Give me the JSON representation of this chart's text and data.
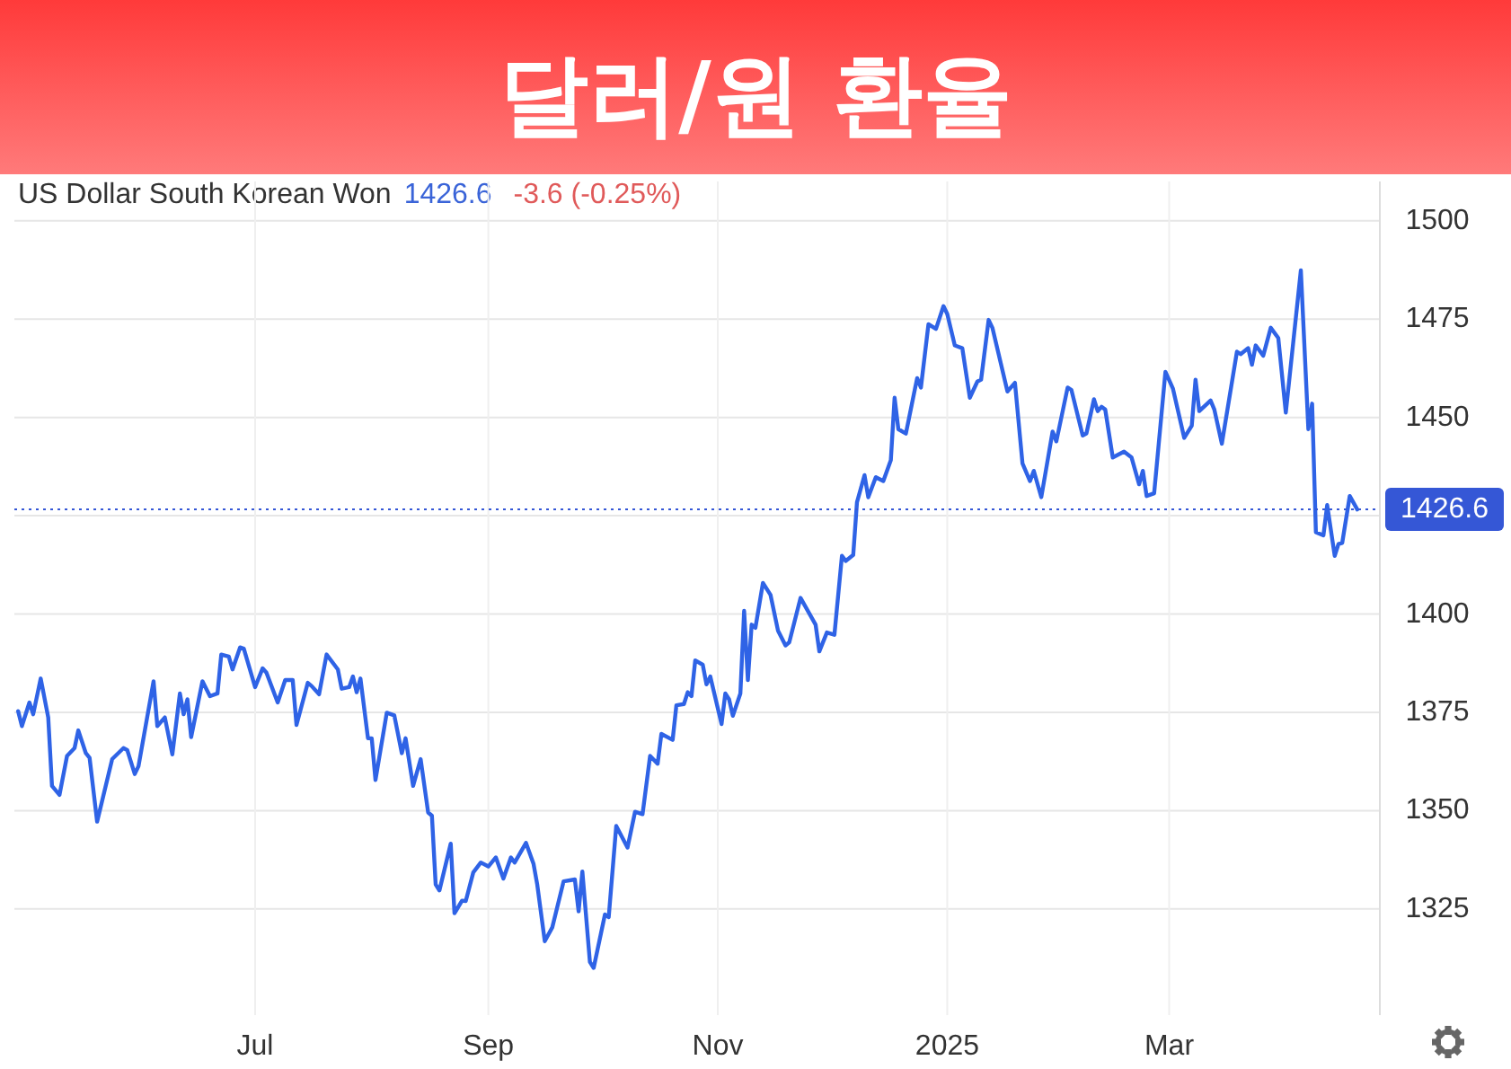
{
  "chart_data": {
    "type": "line",
    "title": "달러/원 환율",
    "subtitle": "US Dollar South Korean Won",
    "annotations": [
      "1426.6",
      "-3.6 (-0.25%)"
    ],
    "x": [
      "2024-04-29",
      "2024-04-30",
      "2024-05-02",
      "2024-05-03",
      "2024-05-05",
      "2024-05-07",
      "2024-05-08",
      "2024-05-10",
      "2024-05-12",
      "2024-05-14",
      "2024-05-15",
      "2024-05-17",
      "2024-05-18",
      "2024-05-20",
      "2024-05-24",
      "2024-05-27",
      "2024-05-28",
      "2024-05-30",
      "2024-05-31",
      "2024-06-04",
      "2024-06-05",
      "2024-06-07",
      "2024-06-09",
      "2024-06-11",
      "2024-06-12",
      "2024-06-13",
      "2024-06-14",
      "2024-06-17",
      "2024-06-19",
      "2024-06-21",
      "2024-06-22",
      "2024-06-24",
      "2024-06-25",
      "2024-06-27",
      "2024-06-28",
      "2024-07-01",
      "2024-07-03",
      "2024-07-04",
      "2024-07-07",
      "2024-07-09",
      "2024-07-11",
      "2024-07-12",
      "2024-07-15",
      "2024-07-16",
      "2024-07-18",
      "2024-07-20",
      "2024-07-23",
      "2024-07-24",
      "2024-07-26",
      "2024-07-27",
      "2024-07-28",
      "2024-07-29",
      "2024-07-31",
      "2024-08-01",
      "2024-08-02",
      "2024-08-05",
      "2024-08-07",
      "2024-08-09",
      "2024-08-10",
      "2024-08-12",
      "2024-08-14",
      "2024-08-16",
      "2024-08-17",
      "2024-08-18",
      "2024-08-19",
      "2024-08-22",
      "2024-08-23",
      "2024-08-25",
      "2024-08-26",
      "2024-08-28",
      "2024-08-30",
      "2024-09-01",
      "2024-09-03",
      "2024-09-05",
      "2024-09-07",
      "2024-09-08",
      "2024-09-11",
      "2024-09-13",
      "2024-09-14",
      "2024-09-16",
      "2024-09-18",
      "2024-09-21",
      "2024-09-24",
      "2024-09-25",
      "2024-09-26",
      "2024-09-28",
      "2024-09-29",
      "2024-10-02",
      "2024-10-03",
      "2024-10-05",
      "2024-10-08",
      "2024-10-10",
      "2024-10-12",
      "2024-10-14",
      "2024-10-16",
      "2024-10-17",
      "2024-10-20",
      "2024-10-21",
      "2024-10-23",
      "2024-10-24",
      "2024-10-25",
      "2024-10-26",
      "2024-10-28",
      "2024-10-29",
      "2024-10-30",
      "2024-11-02",
      "2024-11-03",
      "2024-11-04",
      "2024-11-05",
      "2024-11-07",
      "2024-11-08",
      "2024-11-09",
      "2024-11-10",
      "2024-11-11",
      "2024-11-13",
      "2024-11-15",
      "2024-11-17",
      "2024-11-19",
      "2024-11-20",
      "2024-11-23",
      "2024-11-27",
      "2024-11-28",
      "2024-11-30",
      "2024-12-02",
      "2024-12-04",
      "2024-12-05",
      "2024-12-07",
      "2024-12-08",
      "2024-12-10",
      "2024-12-11",
      "2024-12-13",
      "2024-12-15",
      "2024-12-17",
      "2024-12-18",
      "2024-12-19",
      "2024-12-21",
      "2024-12-24",
      "2024-12-25",
      "2024-12-27",
      "2024-12-29",
      "2024-12-31",
      "2025-01-01",
      "2025-01-03",
      "2025-01-05",
      "2025-01-07",
      "2025-01-09",
      "2025-01-10",
      "2025-01-12",
      "2025-01-13",
      "2025-01-17",
      "2025-01-19",
      "2025-01-21",
      "2025-01-23",
      "2025-01-24",
      "2025-01-26",
      "2025-01-29",
      "2025-01-30",
      "2025-02-02",
      "2025-02-03",
      "2025-02-06",
      "2025-02-07",
      "2025-02-09",
      "2025-02-10",
      "2025-02-11",
      "2025-02-12",
      "2025-02-14",
      "2025-02-17",
      "2025-02-19",
      "2025-02-21",
      "2025-02-22",
      "2025-02-23",
      "2025-02-25",
      "2025-02-28",
      "2025-03-02",
      "2025-03-05",
      "2025-03-07",
      "2025-03-08",
      "2025-03-09",
      "2025-03-12",
      "2025-03-13",
      "2025-03-15",
      "2025-03-19",
      "2025-03-20",
      "2025-03-22",
      "2025-03-23",
      "2025-03-24",
      "2025-03-26",
      "2025-03-28",
      "2025-03-30",
      "2025-04-01",
      "2025-04-05",
      "2025-04-07",
      "2025-04-08",
      "2025-04-09",
      "2025-04-11",
      "2025-04-12",
      "2025-04-14",
      "2025-04-15",
      "2025-04-16",
      "2025-04-18",
      "2025-04-20"
    ],
    "series": [
      {
        "color": "#2f63e6",
        "values": [
          1375.3,
          1371.5,
          1377.5,
          1374.5,
          1383.6,
          1373.7,
          1356.3,
          1354,
          1363.9,
          1365.9,
          1370.4,
          1364.6,
          1363.4,
          1347.2,
          1363.1,
          1365.9,
          1365.4,
          1359.3,
          1361.3,
          1382.9,
          1371.5,
          1373.7,
          1364.3,
          1379.8,
          1374.5,
          1378.3,
          1368.7,
          1382.9,
          1379.1,
          1379.8,
          1389.7,
          1389.2,
          1385.9,
          1391.5,
          1391.2,
          1381.4,
          1386.2,
          1385.1,
          1377.5,
          1383.2,
          1383.2,
          1371.8,
          1382.5,
          1381.7,
          1379.6,
          1389.7,
          1385.9,
          1381,
          1381.4,
          1384.1,
          1380.1,
          1383.6,
          1368.4,
          1368.4,
          1357.8,
          1374.9,
          1374.2,
          1364.6,
          1368.4,
          1356.3,
          1363.1,
          1349.5,
          1348.7,
          1331.2,
          1329.7,
          1341.6,
          1323.9,
          1327.1,
          1327,
          1334.3,
          1336.8,
          1335.8,
          1338.1,
          1332.7,
          1338.1,
          1336.8,
          1341.8,
          1336.5,
          1331.2,
          1316.8,
          1320.3,
          1332,
          1332.5,
          1324.4,
          1334.5,
          1311.5,
          1310,
          1323.6,
          1322.9,
          1346.1,
          1340.6,
          1349.7,
          1349.1,
          1363.9,
          1361.9,
          1369.5,
          1368,
          1376.8,
          1377.1,
          1380.1,
          1379.1,
          1388.2,
          1387.1,
          1382.1,
          1384.1,
          1372,
          1379.8,
          1378.3,
          1374.1,
          1379.8,
          1400.8,
          1383.2,
          1397.3,
          1396.5,
          1407.9,
          1404.9,
          1395.8,
          1392,
          1392.8,
          1404.1,
          1397.3,
          1390.5,
          1395.3,
          1394.7,
          1414.8,
          1413.5,
          1415,
          1428.4,
          1435.3,
          1429.7,
          1434.8,
          1433.8,
          1439.1,
          1455,
          1447,
          1445.9,
          1460,
          1457.6,
          1473.7,
          1472.5,
          1478.3,
          1476.3,
          1468.3,
          1467.6,
          1455,
          1459.1,
          1459.6,
          1474.8,
          1472.8,
          1456.6,
          1458.8,
          1438.3,
          1433.8,
          1436.4,
          1429.7,
          1446.4,
          1443.9,
          1457.6,
          1457,
          1445.4,
          1445.9,
          1454.6,
          1451.6,
          1452.7,
          1452,
          1439.8,
          1441.3,
          1439.8,
          1433,
          1436.4,
          1430,
          1430.7,
          1461.6,
          1457.3,
          1444.8,
          1447.9,
          1459.6,
          1451.6,
          1454.3,
          1452,
          1443.3,
          1466.7,
          1466.1,
          1467.6,
          1463.4,
          1468.3,
          1465.7,
          1472.8,
          1470.2,
          1451.2,
          1487.4,
          1447,
          1453.5,
          1420.8,
          1420,
          1427.7,
          1414.8,
          1417.8,
          1418.1,
          1430,
          1426.6
        ]
      }
    ],
    "xlim": [
      "2024-04-28",
      "2025-04-26"
    ],
    "xticks": [
      {
        "value": "2024-07-01",
        "label": "Jul"
      },
      {
        "value": "2024-09-01",
        "label": "Sep"
      },
      {
        "value": "2024-11-01",
        "label": "Nov"
      },
      {
        "value": "2025-01-01",
        "label": "2025"
      },
      {
        "value": "2025-03-01",
        "label": "Mar"
      }
    ],
    "ylim": [
      1298,
      1510
    ],
    "yticks": [
      1325,
      1350,
      1375,
      1400,
      {
        "value": 1425,
        "label": null
      },
      1450,
      1475,
      1500
    ],
    "ref_lines": [
      {
        "axis": "y",
        "value": 1426.6,
        "label": "1426.6",
        "color": "#3557d6",
        "line_style": "dotted"
      }
    ],
    "grid": true
  }
}
